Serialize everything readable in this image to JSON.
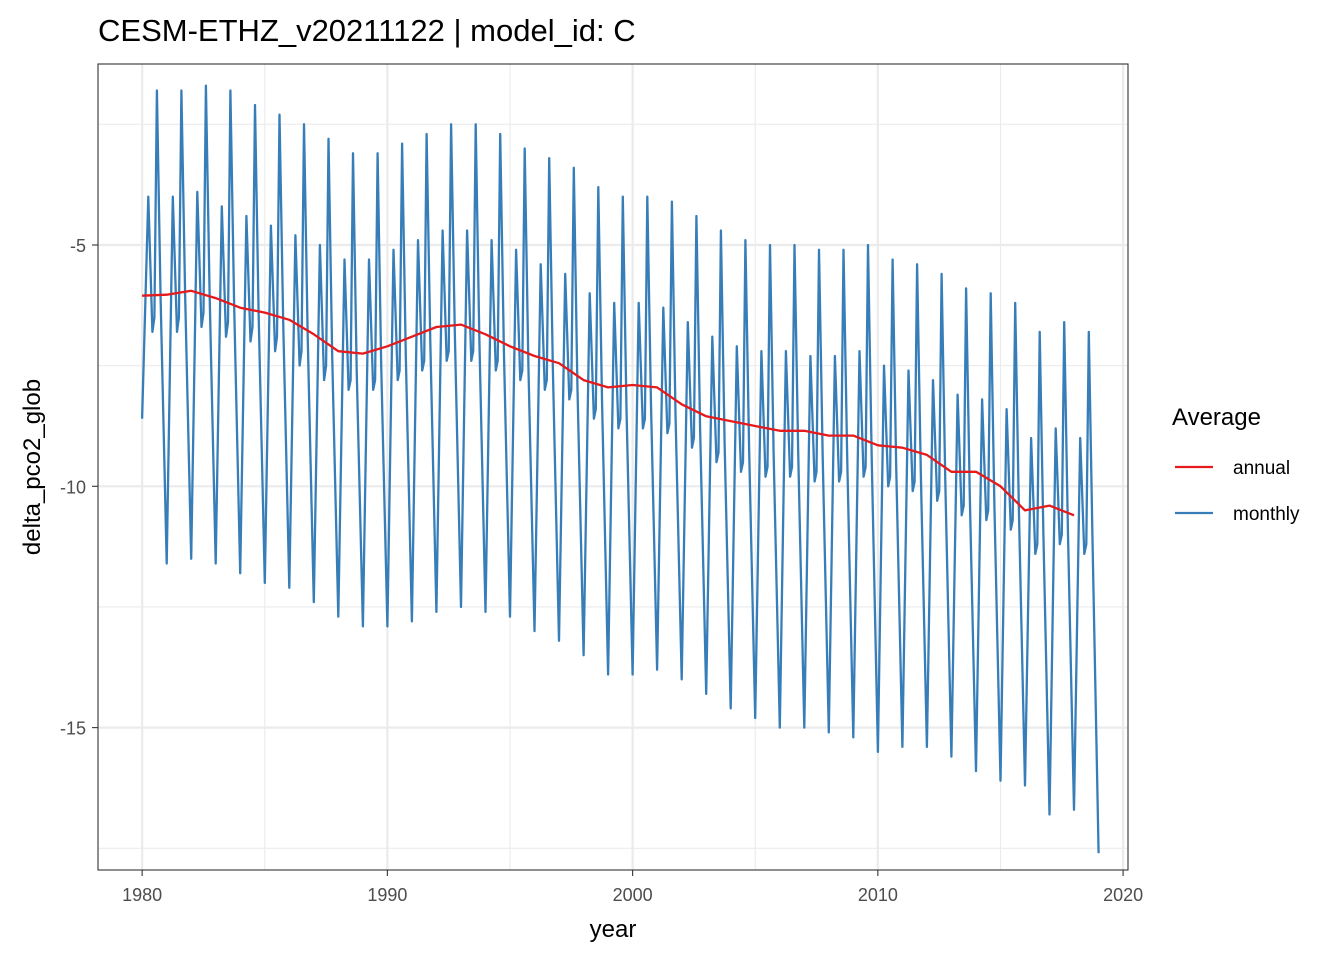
{
  "chart_data": {
    "type": "line",
    "title": "CESM-ETHZ_v20211122 | model_id: C",
    "xlabel": "year",
    "ylabel": "delta_pco2_glob",
    "xlim": [
      1978.2,
      2020.2
    ],
    "ylim": [
      -17.95,
      -1.25
    ],
    "x_ticks": [
      1980,
      1990,
      2000,
      2010,
      2020
    ],
    "y_ticks": [
      -5,
      -10,
      -15
    ],
    "x_tick_labels": [
      "1980",
      "1990",
      "2000",
      "2010",
      "2020"
    ],
    "y_tick_labels": [
      "-5",
      "-10",
      "-15"
    ],
    "grid": true,
    "legend": {
      "title": "Average",
      "position": "right",
      "entries": [
        {
          "label": "annual",
          "color": "#e41a1c"
        },
        {
          "label": "monthly",
          "color": "#377eb8"
        }
      ]
    },
    "series": [
      {
        "name": "annual",
        "color": "#e41a1c",
        "x": [
          1980,
          1981,
          1982,
          1983,
          1984,
          1985,
          1986,
          1987,
          1988,
          1989,
          1990,
          1991,
          1992,
          1993,
          1994,
          1995,
          1996,
          1997,
          1998,
          1999,
          2000,
          2001,
          2002,
          2003,
          2004,
          2005,
          2006,
          2007,
          2008,
          2009,
          2010,
          2011,
          2012,
          2013,
          2014,
          2015,
          2016,
          2017,
          2018
        ],
        "y": [
          -6.05,
          -6.03,
          -5.95,
          -6.1,
          -6.3,
          -6.4,
          -6.55,
          -6.85,
          -7.2,
          -7.25,
          -7.1,
          -6.9,
          -6.7,
          -6.65,
          -6.85,
          -7.1,
          -7.3,
          -7.45,
          -7.8,
          -7.95,
          -7.9,
          -7.95,
          -8.3,
          -8.55,
          -8.65,
          -8.75,
          -8.85,
          -8.85,
          -8.95,
          -8.95,
          -9.15,
          -9.2,
          -9.35,
          -9.7,
          -9.7,
          -10,
          -10.5,
          -10.4,
          -10.6
        ]
      },
      {
        "name": "monthly",
        "color": "#377eb8",
        "x_start": 1980.0,
        "x_step": 0.0833333,
        "amplitude_source": "peaks_troughs",
        "peak_x": [
          1980.6,
          1981.6,
          1982.6,
          1983.6,
          1984.6,
          1985.6,
          1986.6,
          1987.6,
          1988.6,
          1989.6,
          1990.6,
          1991.6,
          1992.6,
          1993.6,
          1994.6,
          1995.6,
          1996.6,
          1997.6,
          1998.6,
          1999.6,
          2000.6,
          2001.6,
          2002.6,
          2003.6,
          2004.6,
          2005.6,
          2006.6,
          2007.6,
          2008.6,
          2009.6,
          2010.6,
          2011.6,
          2012.6,
          2013.6,
          2014.6,
          2015.6,
          2016.6,
          2017.6,
          2018.6
        ],
        "peak_y": [
          -1.8,
          -1.8,
          -1.7,
          -1.8,
          -2.1,
          -2.3,
          -2.5,
          -2.8,
          -3.1,
          -3.1,
          -2.9,
          -2.7,
          -2.5,
          -2.5,
          -2.7,
          -3.0,
          -3.2,
          -3.4,
          -3.8,
          -4.0,
          -4.0,
          -4.1,
          -4.4,
          -4.7,
          -4.9,
          -5.0,
          -5.0,
          -5.1,
          -5.1,
          -5.0,
          -5.3,
          -5.4,
          -5.6,
          -5.9,
          -6.0,
          -6.2,
          -6.8,
          -6.6,
          -6.8
        ],
        "trough_x": [
          1981.0,
          1982.0,
          1983.0,
          1984.0,
          1985.0,
          1986.0,
          1987.0,
          1988.0,
          1989.0,
          1990.0,
          1991.0,
          1992.0,
          1993.0,
          1994.0,
          1995.0,
          1996.0,
          1997.0,
          1998.0,
          1999.0,
          2000.0,
          2001.0,
          2002.0,
          2003.0,
          2004.0,
          2005.0,
          2006.0,
          2007.0,
          2008.0,
          2009.0,
          2010.0,
          2011.0,
          2012.0,
          2013.0,
          2014.0,
          2015.0,
          2016.0,
          2017.0,
          2018.0,
          2019.0
        ],
        "trough_y": [
          -11.6,
          -11.5,
          -11.6,
          -11.8,
          -12.0,
          -12.1,
          -12.4,
          -12.7,
          -12.9,
          -12.9,
          -12.8,
          -12.6,
          -12.5,
          -12.6,
          -12.7,
          -13.0,
          -13.2,
          -13.5,
          -13.9,
          -13.9,
          -13.8,
          -14.0,
          -14.3,
          -14.6,
          -14.8,
          -15.0,
          -15.0,
          -15.1,
          -15.2,
          -15.5,
          -15.4,
          -15.4,
          -15.6,
          -15.9,
          -16.1,
          -16.2,
          -16.8,
          -16.7,
          -17.6
        ],
        "x": [
          1980.0,
          1980.25,
          1980.42,
          1980.5,
          1980.6,
          1980.75,
          1981.0,
          1981.25,
          1981.42,
          1981.5,
          1981.6,
          1981.75,
          1982.0,
          1982.25,
          1982.42,
          1982.5,
          1982.6,
          1982.75,
          1983.0,
          1983.25,
          1983.42,
          1983.5,
          1983.6,
          1983.75,
          1984.0,
          1984.25,
          1984.42,
          1984.5,
          1984.6,
          1984.75,
          1985.0,
          1985.25,
          1985.42,
          1985.5,
          1985.6,
          1985.75,
          1986.0,
          1986.25,
          1986.42,
          1986.5,
          1986.6,
          1986.75,
          1987.0,
          1987.25,
          1987.42,
          1987.5,
          1987.6,
          1987.75,
          1988.0,
          1988.25,
          1988.42,
          1988.5,
          1988.6,
          1988.75,
          1989.0,
          1989.25,
          1989.42,
          1989.5,
          1989.6,
          1989.75,
          1990.0,
          1990.25,
          1990.42,
          1990.5,
          1990.6,
          1990.75,
          1991.0,
          1991.25,
          1991.42,
          1991.5,
          1991.6,
          1991.75,
          1992.0,
          1992.25,
          1992.42,
          1992.5,
          1992.6,
          1992.75,
          1993.0,
          1993.25,
          1993.42,
          1993.5,
          1993.6,
          1993.75,
          1994.0,
          1994.25,
          1994.42,
          1994.5,
          1994.6,
          1994.75,
          1995.0,
          1995.25,
          1995.42,
          1995.5,
          1995.6,
          1995.75,
          1996.0,
          1996.25,
          1996.42,
          1996.5,
          1996.6,
          1996.75,
          1997.0,
          1997.25,
          1997.42,
          1997.5,
          1997.6,
          1997.75,
          1998.0,
          1998.25,
          1998.42,
          1998.5,
          1998.6,
          1998.75,
          1999.0,
          1999.25,
          1999.42,
          1999.5,
          1999.6,
          1999.75,
          2000.0,
          2000.25,
          2000.42,
          2000.5,
          2000.6,
          2000.75,
          2001.0,
          2001.25,
          2001.42,
          2001.5,
          2001.6,
          2001.75,
          2002.0,
          2002.25,
          2002.42,
          2002.5,
          2002.6,
          2002.75,
          2003.0,
          2003.25,
          2003.42,
          2003.5,
          2003.6,
          2003.75,
          2004.0,
          2004.25,
          2004.42,
          2004.5,
          2004.6,
          2004.75,
          2005.0,
          2005.25,
          2005.42,
          2005.5,
          2005.6,
          2005.75,
          2006.0,
          2006.25,
          2006.42,
          2006.5,
          2006.6,
          2006.75,
          2007.0,
          2007.25,
          2007.42,
          2007.5,
          2007.6,
          2007.75,
          2008.0,
          2008.25,
          2008.42,
          2008.5,
          2008.6,
          2008.75,
          2009.0,
          2009.25,
          2009.42,
          2009.5,
          2009.6,
          2009.75,
          2010.0,
          2010.25,
          2010.42,
          2010.5,
          2010.6,
          2010.75,
          2011.0,
          2011.25,
          2011.42,
          2011.5,
          2011.6,
          2011.75,
          2012.0,
          2012.25,
          2012.42,
          2012.5,
          2012.6,
          2012.75,
          2013.0,
          2013.25,
          2013.42,
          2013.5,
          2013.6,
          2013.75,
          2014.0,
          2014.25,
          2014.42,
          2014.5,
          2014.6,
          2014.75,
          2015.0,
          2015.25,
          2015.42,
          2015.5,
          2015.6,
          2015.75,
          2016.0,
          2016.25,
          2016.42,
          2016.5,
          2016.6,
          2016.75,
          2017.0,
          2017.25,
          2017.42,
          2017.5,
          2017.6,
          2017.75,
          2018.0,
          2018.25,
          2018.42,
          2018.5,
          2018.6,
          2018.75,
          2019.0
        ],
        "y": [
          -8.6,
          -4.0,
          -6.8,
          -6.5,
          -1.8,
          -6.0,
          -11.6,
          -4.0,
          -6.8,
          -6.5,
          -1.8,
          -6.0,
          -11.5,
          -3.9,
          -6.7,
          -6.4,
          -1.7,
          -6.0,
          -11.6,
          -4.2,
          -6.9,
          -6.6,
          -1.8,
          -6.2,
          -11.8,
          -4.4,
          -7.0,
          -6.7,
          -2.1,
          -6.4,
          -12.0,
          -4.6,
          -7.2,
          -6.9,
          -2.3,
          -6.6,
          -12.1,
          -4.8,
          -7.5,
          -7.2,
          -2.5,
          -6.9,
          -12.4,
          -5.0,
          -7.8,
          -7.5,
          -2.8,
          -7.3,
          -12.7,
          -5.3,
          -8.0,
          -7.8,
          -3.1,
          -7.6,
          -12.9,
          -5.3,
          -8.0,
          -7.8,
          -3.1,
          -7.5,
          -12.9,
          -5.1,
          -7.8,
          -7.6,
          -2.9,
          -7.3,
          -12.8,
          -4.9,
          -7.6,
          -7.4,
          -2.7,
          -7.0,
          -12.6,
          -4.7,
          -7.4,
          -7.2,
          -2.5,
          -6.8,
          -12.5,
          -4.7,
          -7.4,
          -7.2,
          -2.5,
          -6.9,
          -12.6,
          -4.9,
          -7.6,
          -7.4,
          -2.7,
          -7.2,
          -12.7,
          -5.1,
          -7.8,
          -7.6,
          -3.0,
          -7.5,
          -13.0,
          -5.4,
          -8.0,
          -7.8,
          -3.2,
          -7.6,
          -13.2,
          -5.6,
          -8.2,
          -8.0,
          -3.4,
          -7.9,
          -13.5,
          -6.0,
          -8.6,
          -8.4,
          -3.8,
          -8.2,
          -13.9,
          -6.2,
          -8.8,
          -8.6,
          -4.0,
          -8.4,
          -13.9,
          -6.2,
          -8.8,
          -8.6,
          -4.0,
          -8.3,
          -13.8,
          -6.3,
          -8.9,
          -8.7,
          -4.1,
          -8.5,
          -14.0,
          -6.6,
          -9.2,
          -9.0,
          -4.4,
          -8.8,
          -14.3,
          -6.9,
          -9.5,
          -9.3,
          -4.7,
          -9.1,
          -14.6,
          -7.1,
          -9.7,
          -9.5,
          -4.9,
          -9.2,
          -14.8,
          -7.2,
          -9.8,
          -9.6,
          -5.0,
          -9.3,
          -15.0,
          -7.2,
          -9.8,
          -9.6,
          -5.0,
          -9.3,
          -15.0,
          -7.3,
          -9.9,
          -9.7,
          -5.1,
          -9.4,
          -15.1,
          -7.3,
          -9.9,
          -9.7,
          -5.1,
          -9.4,
          -15.2,
          -7.2,
          -9.8,
          -9.6,
          -5.0,
          -9.4,
          -15.5,
          -7.5,
          -10.0,
          -9.8,
          -5.3,
          -9.6,
          -15.4,
          -7.6,
          -10.1,
          -9.9,
          -5.4,
          -9.7,
          -15.4,
          -7.8,
          -10.3,
          -10.1,
          -5.6,
          -9.9,
          -15.6,
          -8.1,
          -10.6,
          -10.4,
          -5.9,
          -10.2,
          -15.9,
          -8.2,
          -10.7,
          -10.5,
          -6.0,
          -10.3,
          -16.1,
          -8.4,
          -10.9,
          -10.7,
          -6.2,
          -10.5,
          -16.2,
          -9.0,
          -11.4,
          -11.2,
          -6.8,
          -11.0,
          -16.8,
          -8.8,
          -11.2,
          -11.0,
          -6.6,
          -10.9,
          -16.7,
          -9.0,
          -11.4,
          -11.2,
          -6.8,
          -11.0,
          -17.6
        ]
      }
    ]
  }
}
